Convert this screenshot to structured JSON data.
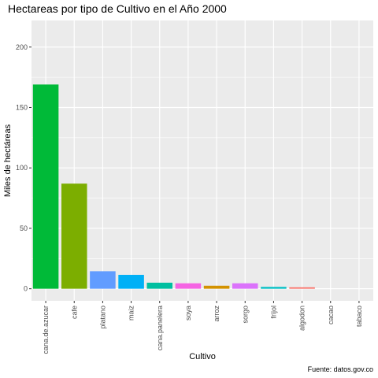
{
  "chart_data": {
    "type": "bar",
    "title": "Hectareas por tipo de Cultivo en el Año 2000",
    "xlabel": "Cultivo",
    "ylabel": "Miles de hectáreas",
    "caption": "Fuente: datos.gov.co",
    "categories": [
      "cana.de.azucar",
      "cafe",
      "platano",
      "maiz",
      "cana.panelera",
      "soya",
      "arroz",
      "sorgo",
      "frijol",
      "algodon",
      "cacao",
      "tabaco"
    ],
    "values": [
      169,
      87,
      14.5,
      11.5,
      5,
      4.5,
      2.5,
      4.5,
      1.5,
      1.2,
      0,
      0
    ],
    "colors": [
      "#00BA38",
      "#7CAE00",
      "#619CFF",
      "#00B0F6",
      "#00BFA0",
      "#F564E3",
      "#D39200",
      "#DB72FB",
      "#00BFC4",
      "#F8766D",
      "#E7851E",
      "#FF62BC"
    ],
    "ylim": [
      -10,
      222
    ],
    "yticks": [
      0,
      50,
      100,
      150,
      200
    ],
    "grid": true,
    "legend": "none",
    "panel_background": "#EBEBEB",
    "grid_color": "#FFFFFF"
  }
}
